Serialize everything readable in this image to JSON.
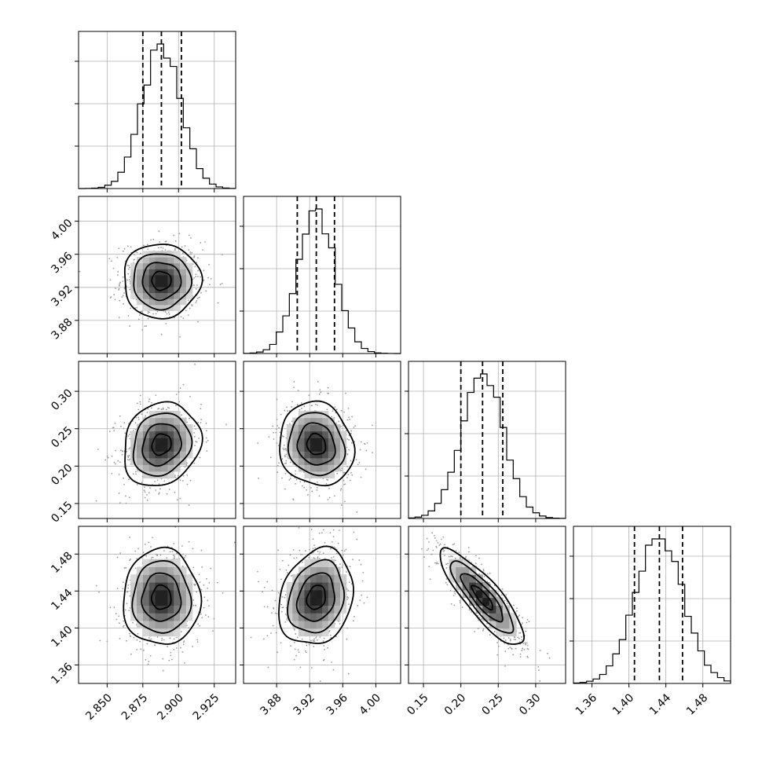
{
  "chart_data": {
    "type": "corner",
    "parameters": [
      {
        "name": "",
        "range": [
          2.83,
          2.94
        ],
        "ticks": [
          2.85,
          2.875,
          2.9,
          2.925
        ],
        "tick_labels": [
          "2.850",
          "2.875",
          "2.900",
          "2.925"
        ],
        "quantiles": [
          2.875,
          2.888,
          2.902
        ],
        "center": 2.888,
        "sigma": 0.0135,
        "hist_peak": 0.92
      },
      {
        "name": "",
        "range": [
          3.84,
          4.03
        ],
        "ticks": [
          3.88,
          3.92,
          3.96,
          4.0
        ],
        "tick_labels": [
          "3.88",
          "3.92",
          "3.96",
          "4.00"
        ],
        "quantiles": [
          3.905,
          3.928,
          3.95
        ],
        "center": 3.928,
        "sigma": 0.0225,
        "hist_peak": 0.92
      },
      {
        "name": "",
        "range": [
          0.13,
          0.34
        ],
        "ticks": [
          0.15,
          0.2,
          0.25,
          0.3
        ],
        "tick_labels": [
          "0.15",
          "0.20",
          "0.25",
          "0.30"
        ],
        "quantiles": [
          0.2,
          0.229,
          0.256
        ],
        "center": 0.229,
        "sigma": 0.028,
        "hist_peak": 0.92
      },
      {
        "name": "",
        "range": [
          1.34,
          1.51
        ],
        "ticks": [
          1.36,
          1.4,
          1.44,
          1.48
        ],
        "tick_labels": [
          "1.36",
          "1.40",
          "1.44",
          "1.48"
        ],
        "quantiles": [
          1.406,
          1.433,
          1.458
        ],
        "center": 1.433,
        "sigma": 0.026,
        "hist_peak": 0.92
      }
    ],
    "correlations": {
      "1-0": 0.0,
      "2-0": 0.15,
      "2-1": -0.1,
      "3-0": 0.0,
      "3-1": 0.2,
      "3-2": -0.85
    },
    "hist_yticks": [
      0.25,
      0.5,
      0.75
    ],
    "contour_levels_sigma": [
      0.5,
      1.0,
      1.5,
      2.0
    ],
    "grid": true,
    "colors": {
      "ink": "#000000",
      "scatter": "#9a9a9a",
      "grid": "#b0b0b0"
    }
  }
}
